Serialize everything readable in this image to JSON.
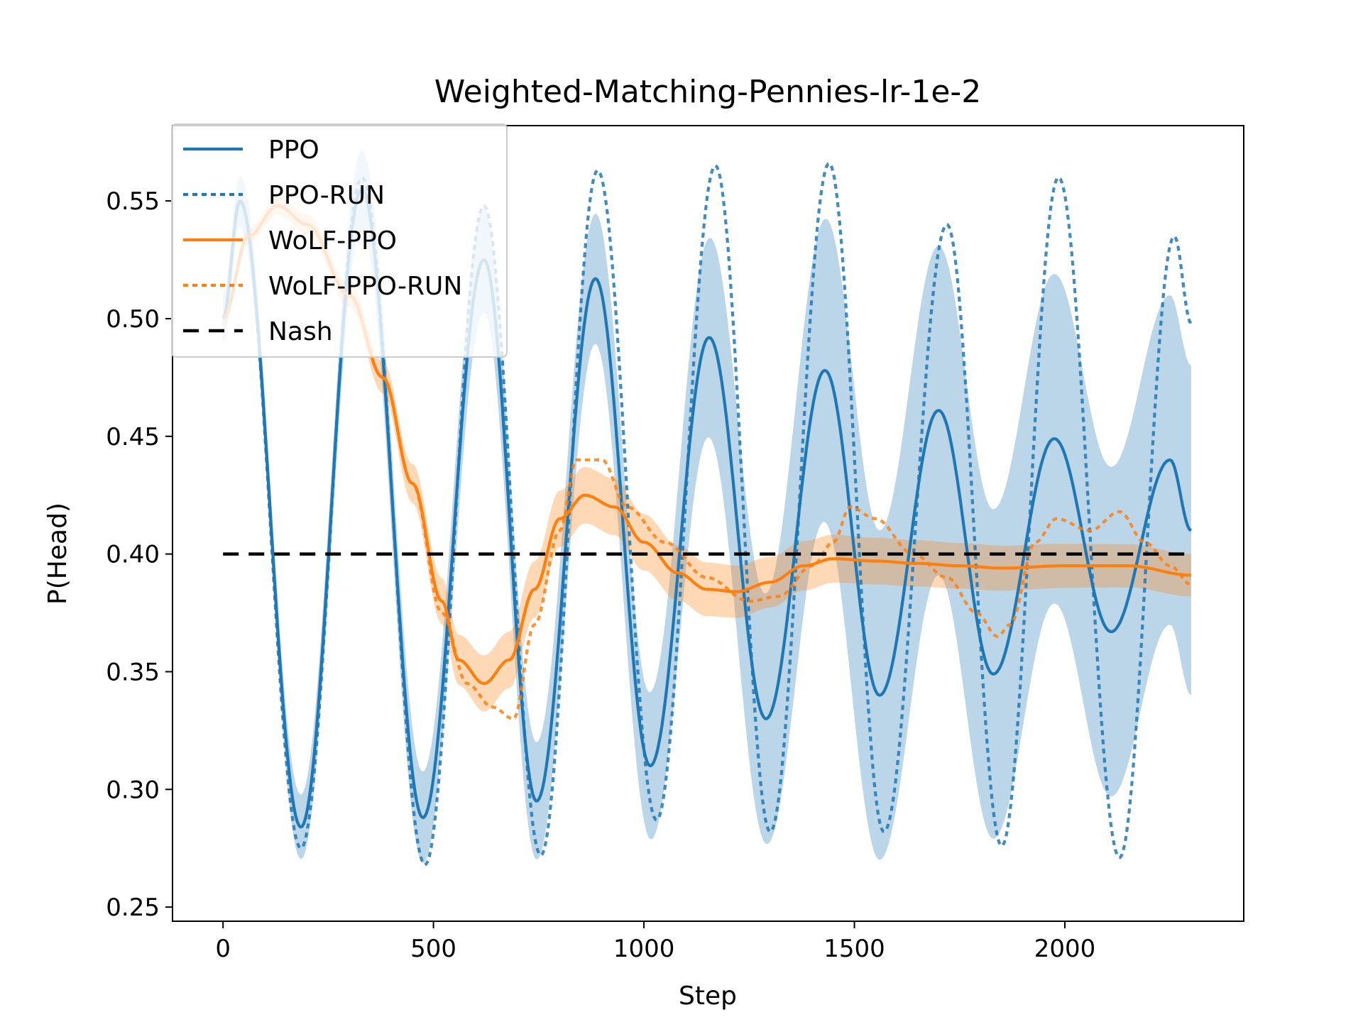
{
  "chart_data": {
    "type": "line",
    "title": "Weighted-Matching-Pennies-lr-1e-2",
    "xlabel": "Step",
    "ylabel": "P(Head)",
    "xlim": [
      -120,
      2425
    ],
    "ylim": [
      0.244,
      0.582
    ],
    "xticks": [
      0,
      500,
      1000,
      1500,
      2000
    ],
    "yticks": [
      0.25,
      0.3,
      0.35,
      0.4,
      0.45,
      0.5,
      0.55
    ],
    "ytick_labels": [
      "0.25",
      "0.30",
      "0.35",
      "0.40",
      "0.45",
      "0.50",
      "0.55"
    ],
    "legend_position": "upper-left",
    "legend": [
      "PPO",
      "PPO-RUN",
      "WoLF-PPO",
      "WoLF-PPO-RUN",
      "Nash"
    ],
    "colors": {
      "blue": "#1f77b4",
      "orange": "#ff7f0e",
      "nash": "#000000"
    },
    "series": [
      {
        "name": "PPO",
        "style": "solid",
        "points": [
          [
            0,
            0.5
          ],
          [
            40,
            0.55
          ],
          [
            185,
            0.284
          ],
          [
            330,
            0.555
          ],
          [
            475,
            0.288
          ],
          [
            620,
            0.525
          ],
          [
            745,
            0.295
          ],
          [
            885,
            0.517
          ],
          [
            1015,
            0.31
          ],
          [
            1155,
            0.492
          ],
          [
            1290,
            0.33
          ],
          [
            1430,
            0.478
          ],
          [
            1560,
            0.34
          ],
          [
            1700,
            0.461
          ],
          [
            1830,
            0.349
          ],
          [
            1975,
            0.449
          ],
          [
            2110,
            0.367
          ],
          [
            2250,
            0.44
          ],
          [
            2300,
            0.41
          ]
        ],
        "band": [
          [
            0,
            0.01
          ],
          [
            1000,
            0.03
          ],
          [
            1500,
            0.07
          ],
          [
            2300,
            0.07
          ]
        ]
      },
      {
        "name": "PPO-RUN",
        "style": "dotted",
        "points": [
          [
            0,
            0.5
          ],
          [
            40,
            0.55
          ],
          [
            185,
            0.275
          ],
          [
            330,
            0.56
          ],
          [
            480,
            0.268
          ],
          [
            620,
            0.548
          ],
          [
            755,
            0.272
          ],
          [
            890,
            0.563
          ],
          [
            1030,
            0.287
          ],
          [
            1170,
            0.565
          ],
          [
            1300,
            0.282
          ],
          [
            1440,
            0.566
          ],
          [
            1570,
            0.282
          ],
          [
            1720,
            0.54
          ],
          [
            1850,
            0.276
          ],
          [
            1985,
            0.56
          ],
          [
            2130,
            0.271
          ],
          [
            2260,
            0.535
          ],
          [
            2300,
            0.498
          ]
        ]
      },
      {
        "name": "WoLF-PPO",
        "style": "solid",
        "points": [
          [
            0,
            0.5
          ],
          [
            60,
            0.535
          ],
          [
            130,
            0.548
          ],
          [
            200,
            0.54
          ],
          [
            300,
            0.51
          ],
          [
            380,
            0.475
          ],
          [
            450,
            0.43
          ],
          [
            520,
            0.38
          ],
          [
            560,
            0.355
          ],
          [
            620,
            0.345
          ],
          [
            680,
            0.355
          ],
          [
            740,
            0.385
          ],
          [
            800,
            0.415
          ],
          [
            860,
            0.425
          ],
          [
            930,
            0.42
          ],
          [
            1000,
            0.405
          ],
          [
            1080,
            0.392
          ],
          [
            1150,
            0.385
          ],
          [
            1220,
            0.384
          ],
          [
            1300,
            0.388
          ],
          [
            1380,
            0.395
          ],
          [
            1450,
            0.398
          ],
          [
            1550,
            0.397
          ],
          [
            1650,
            0.396
          ],
          [
            1750,
            0.395
          ],
          [
            1850,
            0.394
          ],
          [
            2000,
            0.395
          ],
          [
            2150,
            0.395
          ],
          [
            2300,
            0.391
          ]
        ],
        "band": [
          [
            0,
            0.003
          ],
          [
            300,
            0.005
          ],
          [
            620,
            0.012
          ],
          [
            1000,
            0.012
          ],
          [
            1500,
            0.01
          ],
          [
            2300,
            0.009
          ]
        ]
      },
      {
        "name": "WoLF-PPO-RUN",
        "style": "dotted",
        "points": [
          [
            0,
            0.5
          ],
          [
            60,
            0.535
          ],
          [
            130,
            0.548
          ],
          [
            200,
            0.54
          ],
          [
            300,
            0.51
          ],
          [
            380,
            0.475
          ],
          [
            450,
            0.43
          ],
          [
            520,
            0.375
          ],
          [
            580,
            0.345
          ],
          [
            640,
            0.335
          ],
          [
            690,
            0.33
          ],
          [
            740,
            0.37
          ],
          [
            800,
            0.41
          ],
          [
            840,
            0.44
          ],
          [
            900,
            0.44
          ],
          [
            960,
            0.42
          ],
          [
            1050,
            0.405
          ],
          [
            1150,
            0.39
          ],
          [
            1250,
            0.38
          ],
          [
            1320,
            0.382
          ],
          [
            1400,
            0.395
          ],
          [
            1450,
            0.405
          ],
          [
            1490,
            0.42
          ],
          [
            1550,
            0.415
          ],
          [
            1640,
            0.4
          ],
          [
            1720,
            0.39
          ],
          [
            1790,
            0.375
          ],
          [
            1840,
            0.365
          ],
          [
            1870,
            0.37
          ],
          [
            1930,
            0.405
          ],
          [
            1980,
            0.415
          ],
          [
            2060,
            0.41
          ],
          [
            2130,
            0.418
          ],
          [
            2190,
            0.405
          ],
          [
            2250,
            0.395
          ],
          [
            2300,
            0.387
          ]
        ]
      },
      {
        "name": "Nash",
        "style": "dashed",
        "points": [
          [
            0,
            0.4
          ],
          [
            2300,
            0.4
          ]
        ]
      }
    ]
  }
}
